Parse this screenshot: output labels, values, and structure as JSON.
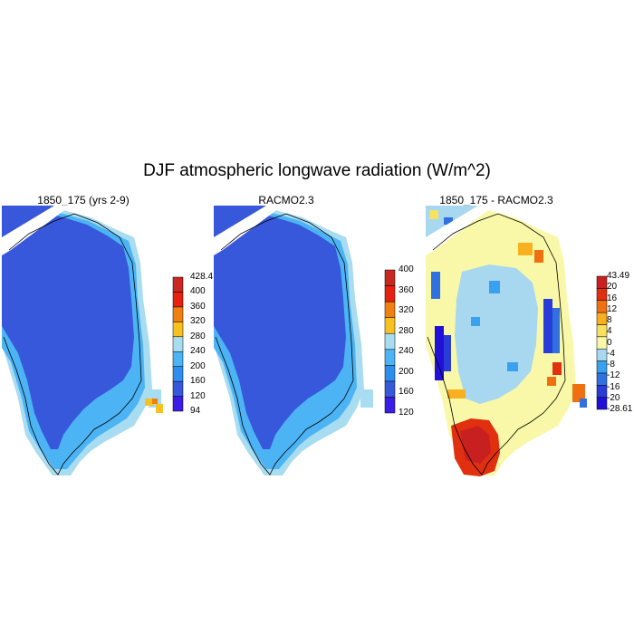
{
  "figure": {
    "title": "DJF atmospheric longwave radiation (W/m^2)"
  },
  "palettes": {
    "abs": [
      "#3a1ee8",
      "#3858dc",
      "#2e8ef0",
      "#4cb4f4",
      "#a8dcf0",
      "#f8c020",
      "#f08010",
      "#e82010",
      "#c82820"
    ],
    "diff": [
      "#2010d8",
      "#2a3cd8",
      "#3070e0",
      "#3aa0f0",
      "#a8d8f0",
      "#f8f8a8",
      "#f8e060",
      "#f8b020",
      "#f07010",
      "#e03010",
      "#c82020"
    ]
  },
  "panels": [
    {
      "id": "model",
      "title": "1850_175 (yrs 2-9)",
      "colorbar_labels": [
        "428.4",
        "400",
        "360",
        "320",
        "280",
        "240",
        "200",
        "160",
        "120",
        "94"
      ]
    },
    {
      "id": "racmo",
      "title": "RACMO2.3",
      "colorbar_labels": [
        "400",
        "360",
        "320",
        "280",
        "240",
        "200",
        "160",
        "120"
      ]
    },
    {
      "id": "difference",
      "title": "1850_175 - RACMO2.3",
      "colorbar_labels": [
        "43.49",
        "20",
        "16",
        "12",
        "8",
        "4",
        "0",
        "-4",
        "-8",
        "-12",
        "-16",
        "-20",
        "-28.61"
      ]
    }
  ]
}
